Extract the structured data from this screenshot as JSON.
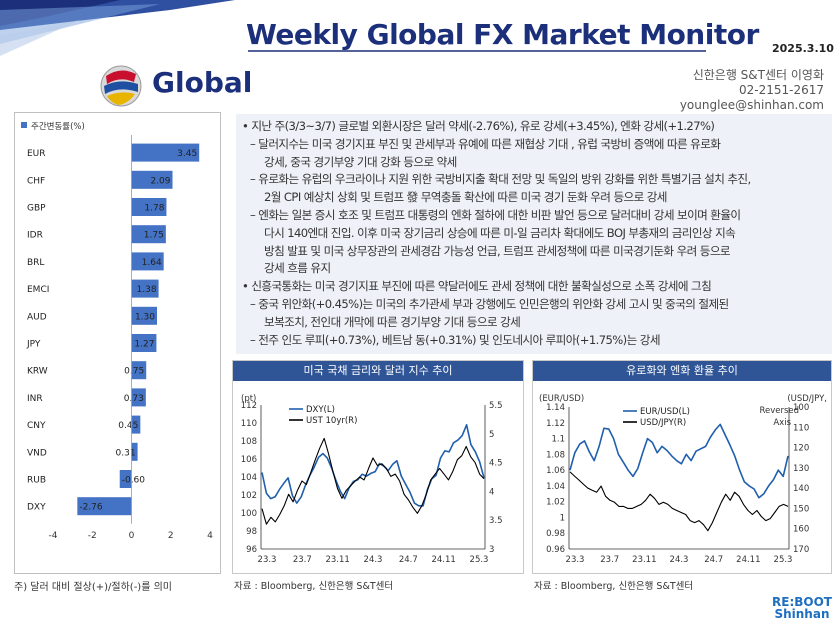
{
  "header": {
    "title": "Weekly Global FX Market Monitor",
    "date": "2025.3.10",
    "region": "Global",
    "author_line1": "신한은행 S&T센터 이영화",
    "author_line2": "02-2151-2617",
    "author_line3": "younglee@shinhan.com"
  },
  "colors": {
    "navy": "#1b2f7a",
    "bar_blue": "#4472c4",
    "panel_bg": "#eef1f7",
    "line_blue": "#1f5fae",
    "line_black": "#000000"
  },
  "bar_chart": {
    "legend": "주간변동률(%)",
    "note": "주) 달러 대비 절상(+)/절하(-)를 의미",
    "chart_data": {
      "type": "bar",
      "orientation": "horizontal",
      "categories": [
        "EUR",
        "CHF",
        "GBP",
        "IDR",
        "BRL",
        "EMCI",
        "AUD",
        "JPY",
        "KRW",
        "INR",
        "CNY",
        "VND",
        "RUB",
        "DXY"
      ],
      "values": [
        3.45,
        2.09,
        1.78,
        1.75,
        1.64,
        1.38,
        1.3,
        1.27,
        0.75,
        0.73,
        0.45,
        0.31,
        -0.6,
        -2.76
      ],
      "value_labels": [
        "3.45",
        "2.09",
        "1.78",
        "1.75",
        "1.64",
        "1.38",
        "1.30",
        "1.27",
        "0.75",
        "0.73",
        "0.45",
        "0.31",
        "-0.60",
        "-2.76"
      ],
      "xlim": [
        -4,
        4
      ],
      "xticks": [
        "-4",
        "-2",
        "0",
        "2",
        "4"
      ]
    }
  },
  "commentary": {
    "lines": [
      "• 지난 주(3/3~3/7) 글로벌 외환시장은 달러 약세(-2.76%), 유로 강세(+3.45%), 엔화 강세(+1.27%)",
      "– 달러지수는 미국 경기지표 부진 및 관세부과 유예에 따른 재협상 기대 , 유럽 국방비 증액에 따른 유로화",
      "강세, 중국 경기부양 기대 강화 등으로 약세",
      "– 유로화는 유럽의 우크라이나 지원 위한 국방비지출 확대 전망 및 독일의 방위 강화를 위한 특별기금 설치 추진,",
      "2월 CPI 예상치 상회 및 트럼프 發 무역충돌 확산에 따른 미국 경기 둔화 우려 등으로 강세",
      "– 엔화는 일본 증시 호조 및 트럼프 대통령의 엔화 절하에 대한 비판 발언 등으로 달러대비 강세 보이며 환율이",
      "다시 140엔대 진입.  이후 미국 장기금리 상승에 따른 미-일 금리차 확대에도 BOJ 부총재의 금리인상 지속",
      "방침 발표 및 미국 상무장관의 관세경감 가능성  언급, 트럼프 관세정책에 따른 미국경기둔화 우려 등으로",
      "강세 흐름 유지",
      "• 신흥국통화는 미국 경기지표 부진에 따른 약달러에도 관세 정책에 대한 불확실성으로 소폭 강세에 그침",
      "– 중국 위안화(+0.45%)는 미국의 추가관세 부과 강행에도 인민은행의 위안화 강세 고시 및 중국의 절제된",
      "보복조치, 전인대 개막에 따른 경기부양 기대 등으로 강세",
      "– 전주 인도 루피(+0.73%), 베트남 동(+0.31%) 및 인도네시아 루피아(+1.75%)는 강세"
    ]
  },
  "chart1": {
    "title": "미국 국채 금리와 달러 지수 추이",
    "source": "자료 : Bloomberg, 신한은행 S&T센터",
    "left_unit": "(pt)",
    "chart_data": {
      "type": "line",
      "x_ticks": [
        "23.3",
        "23.7",
        "23.11",
        "24.3",
        "24.7",
        "24.11",
        "25.3"
      ],
      "y_left": {
        "ticks": [
          "96",
          "98",
          "100",
          "102",
          "104",
          "106",
          "108",
          "110",
          "112"
        ],
        "range": [
          96,
          112
        ]
      },
      "y_right": {
        "ticks": [
          "3",
          "3.5",
          "4",
          "4.5",
          "5",
          "5.5"
        ],
        "range": [
          3,
          5.5
        ]
      },
      "series": [
        {
          "name": "DXY(L)",
          "axis": "left",
          "color": "#1f5fae",
          "values": [
            104.5,
            102.2,
            101.6,
            101.8,
            102.6,
            103.3,
            103.9,
            101.9,
            101.1,
            101.8,
            103.1,
            104.2,
            105.1,
            106.2,
            106.6,
            106.1,
            105.0,
            103.6,
            102.4,
            101.6,
            102.8,
            103.5,
            103.7,
            104.3,
            104.1,
            104.4,
            104.6,
            105.5,
            105.2,
            104.7,
            105.4,
            105.8,
            104.1,
            103.2,
            102.3,
            101.1,
            100.8,
            100.8,
            102.6,
            103.8,
            104.2,
            106.1,
            106.9,
            106.8,
            107.8,
            108.1,
            108.6,
            109.8,
            107.6,
            106.8,
            105.7,
            103.9
          ]
        },
        {
          "name": "UST 10yr(R)",
          "axis": "right",
          "color": "#000000",
          "values": [
            3.7,
            3.43,
            3.55,
            3.47,
            3.6,
            3.75,
            3.95,
            3.82,
            4.02,
            4.18,
            4.12,
            4.33,
            4.55,
            4.75,
            4.92,
            4.65,
            4.34,
            4.05,
            3.88,
            4.02,
            4.1,
            4.18,
            4.25,
            4.2,
            4.4,
            4.58,
            4.45,
            4.48,
            4.4,
            4.26,
            4.3,
            4.18,
            3.95,
            3.85,
            3.72,
            3.62,
            3.75,
            3.95,
            4.2,
            4.3,
            4.4,
            4.3,
            4.2,
            4.35,
            4.55,
            4.62,
            4.78,
            4.6,
            4.5,
            4.3,
            4.22
          ]
        }
      ]
    }
  },
  "chart2": {
    "title": "유로화와 엔화 환율 추이",
    "source": "자료 : Bloomberg, 신한은행 S&T센터",
    "left_unit": "(EUR/USD)",
    "right_unit_line1": "(USD/JPY,",
    "right_unit_line2": "Reversed",
    "right_unit_line3": "Axis",
    "chart_data": {
      "type": "line",
      "x_ticks": [
        "23.3",
        "23.7",
        "23.11",
        "24.3",
        "24.7",
        "24.11",
        "25.3"
      ],
      "y_left": {
        "ticks": [
          "0.96",
          "0.98",
          "1",
          "1.02",
          "1.04",
          "1.06",
          "1.08",
          "1.1",
          "1.12",
          "1.14"
        ],
        "range": [
          0.96,
          1.14
        ]
      },
      "y_right": {
        "ticks": [
          "100",
          "110",
          "120",
          "130",
          "140",
          "150",
          "160",
          "170"
        ],
        "range": [
          100,
          170
        ],
        "reversed": true
      },
      "series": [
        {
          "name": "EUR/USD(L)",
          "axis": "left",
          "color": "#1f5fae",
          "values": [
            1.06,
            1.082,
            1.093,
            1.097,
            1.083,
            1.072,
            1.09,
            1.113,
            1.112,
            1.1,
            1.08,
            1.07,
            1.06,
            1.052,
            1.062,
            1.082,
            1.1,
            1.095,
            1.082,
            1.09,
            1.085,
            1.078,
            1.072,
            1.068,
            1.08,
            1.072,
            1.084,
            1.087,
            1.09,
            1.102,
            1.111,
            1.118,
            1.105,
            1.092,
            1.078,
            1.06,
            1.045,
            1.04,
            1.036,
            1.025,
            1.03,
            1.04,
            1.048,
            1.06,
            1.052,
            1.078
          ]
        },
        {
          "name": "USD/JPY(R)",
          "axis": "right",
          "color": "#000000",
          "values": [
            132,
            134,
            136,
            138,
            140,
            141,
            142,
            139,
            144,
            146,
            147,
            149,
            149,
            150,
            150,
            149,
            148,
            146,
            143,
            145,
            148,
            147,
            148,
            150,
            151,
            152,
            153,
            156,
            157,
            156,
            158,
            161,
            157,
            152,
            147,
            143,
            146,
            142,
            144,
            148,
            151,
            153,
            151,
            154,
            156,
            155,
            152,
            149,
            148,
            149
          ]
        }
      ]
    }
  },
  "brand": {
    "line1": "RE:BOOT",
    "line2": "Shinhan"
  }
}
